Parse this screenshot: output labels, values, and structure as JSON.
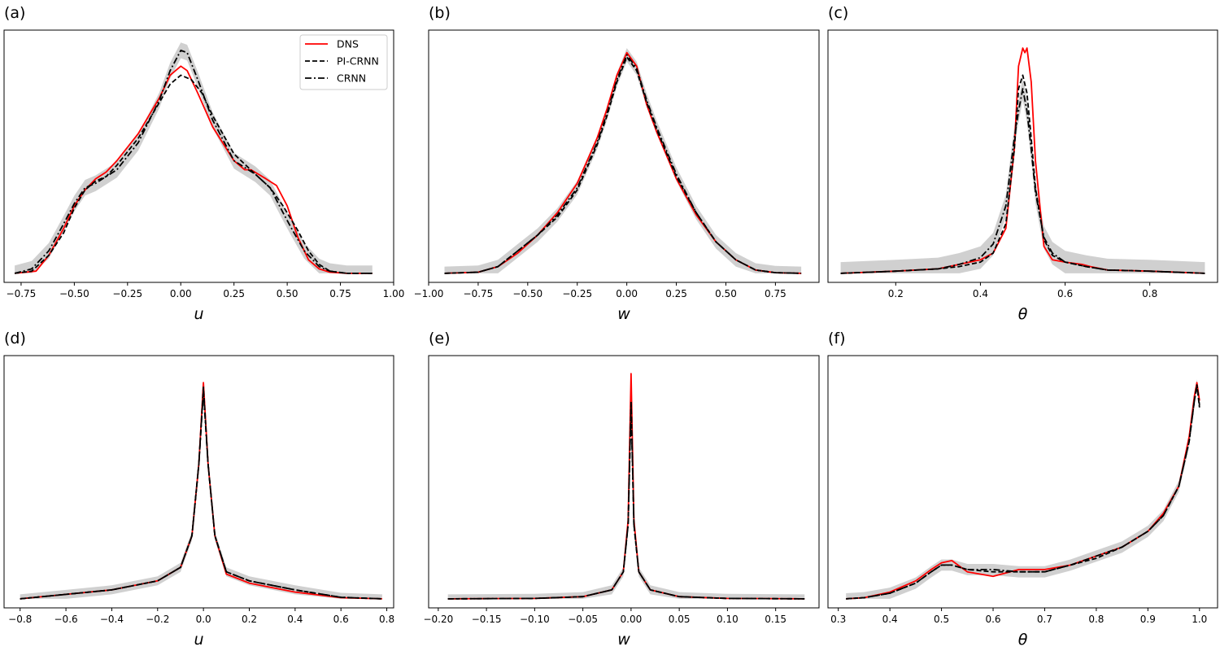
{
  "figure": {
    "legend": {
      "entries": [
        {
          "label": "DNS",
          "style": "solid",
          "color": "#ff0000"
        },
        {
          "label": "PI-CRNN",
          "style": "dashed",
          "color": "#000000"
        },
        {
          "label": "CRNN",
          "style": "dashdot",
          "color": "#000000"
        }
      ],
      "placement": "top-right of panel (a)"
    },
    "band_color": "#c8c8c8"
  },
  "chart_data": [
    {
      "panel": "(a)",
      "type": "line",
      "xlabel": "u",
      "xlim": [
        -0.83,
        1.0
      ],
      "ylim": [
        -0.04,
        1.08
      ],
      "xticks": [
        -0.75,
        -0.5,
        -0.25,
        0.0,
        0.25,
        0.5,
        0.75,
        1.0
      ],
      "xtick_labels": [
        "−0.75",
        "−0.50",
        "−0.25",
        "0.00",
        "0.25",
        "0.50",
        "0.75",
        "1.00"
      ],
      "series": [
        {
          "name": "DNS",
          "x": [
            -0.78,
            -0.68,
            -0.62,
            -0.55,
            -0.5,
            -0.45,
            -0.4,
            -0.35,
            -0.3,
            -0.2,
            -0.1,
            -0.05,
            0.0,
            0.03,
            0.08,
            0.15,
            0.25,
            0.3,
            0.33,
            0.4,
            0.45,
            0.5,
            0.55,
            0.6,
            0.65,
            0.7,
            0.78,
            0.9
          ],
          "y": [
            0.0,
            0.01,
            0.08,
            0.2,
            0.3,
            0.37,
            0.42,
            0.45,
            0.5,
            0.62,
            0.78,
            0.88,
            0.92,
            0.9,
            0.8,
            0.65,
            0.5,
            0.46,
            0.46,
            0.42,
            0.39,
            0.3,
            0.16,
            0.06,
            0.02,
            0.005,
            0.0,
            0.0
          ]
        },
        {
          "name": "PI-CRNN",
          "x": [
            -0.78,
            -0.7,
            -0.62,
            -0.55,
            -0.5,
            -0.45,
            -0.4,
            -0.35,
            -0.3,
            -0.2,
            -0.1,
            -0.05,
            0.0,
            0.05,
            0.1,
            0.15,
            0.25,
            0.35,
            0.42,
            0.48,
            0.55,
            0.6,
            0.65,
            0.7,
            0.78,
            0.9
          ],
          "y": [
            0.0,
            0.01,
            0.08,
            0.18,
            0.29,
            0.37,
            0.41,
            0.43,
            0.48,
            0.6,
            0.76,
            0.84,
            0.88,
            0.86,
            0.8,
            0.7,
            0.53,
            0.44,
            0.38,
            0.3,
            0.19,
            0.1,
            0.04,
            0.01,
            0.0,
            0.0
          ]
        },
        {
          "name": "CRNN",
          "x": [
            -0.78,
            -0.7,
            -0.62,
            -0.55,
            -0.5,
            -0.45,
            -0.4,
            -0.35,
            -0.3,
            -0.2,
            -0.1,
            -0.05,
            0.0,
            0.03,
            0.08,
            0.15,
            0.25,
            0.35,
            0.42,
            0.48,
            0.52,
            0.58,
            0.65,
            0.7,
            0.78,
            0.9
          ],
          "y": [
            0.0,
            0.02,
            0.1,
            0.22,
            0.31,
            0.38,
            0.4,
            0.43,
            0.46,
            0.58,
            0.77,
            0.9,
            0.99,
            0.98,
            0.86,
            0.68,
            0.5,
            0.44,
            0.38,
            0.27,
            0.2,
            0.1,
            0.03,
            0.01,
            0.0,
            0.0
          ]
        }
      ],
      "band": {
        "series": "CRNN",
        "width": 0.035
      }
    },
    {
      "panel": "(b)",
      "type": "line",
      "xlabel": "w",
      "xlim": [
        -1.0,
        0.97
      ],
      "ylim": [
        -0.04,
        1.08
      ],
      "xticks": [
        -1.0,
        -0.75,
        -0.5,
        -0.25,
        0.0,
        0.25,
        0.5,
        0.75
      ],
      "xtick_labels": [
        "−1.00",
        "−0.75",
        "−0.50",
        "−0.25",
        "0.00",
        "0.25",
        "0.50",
        "0.75"
      ],
      "series": [
        {
          "name": "DNS",
          "x": [
            -0.92,
            -0.75,
            -0.65,
            -0.55,
            -0.45,
            -0.35,
            -0.25,
            -0.15,
            -0.1,
            -0.05,
            0.0,
            0.05,
            0.1,
            0.15,
            0.25,
            0.35,
            0.45,
            0.55,
            0.65,
            0.75,
            0.88
          ],
          "y": [
            0.0,
            0.005,
            0.03,
            0.09,
            0.17,
            0.27,
            0.4,
            0.6,
            0.73,
            0.88,
            0.98,
            0.92,
            0.75,
            0.63,
            0.42,
            0.26,
            0.14,
            0.06,
            0.015,
            0.003,
            0.0
          ]
        },
        {
          "name": "PI-CRNN",
          "x": [
            -0.92,
            -0.75,
            -0.65,
            -0.55,
            -0.45,
            -0.35,
            -0.25,
            -0.15,
            -0.1,
            -0.05,
            0.0,
            0.05,
            0.1,
            0.15,
            0.25,
            0.35,
            0.45,
            0.55,
            0.65,
            0.75,
            0.88
          ],
          "y": [
            0.0,
            0.005,
            0.03,
            0.1,
            0.17,
            0.25,
            0.37,
            0.57,
            0.7,
            0.85,
            0.96,
            0.9,
            0.76,
            0.64,
            0.43,
            0.27,
            0.14,
            0.06,
            0.015,
            0.003,
            0.0
          ]
        },
        {
          "name": "CRNN",
          "x": [
            -0.92,
            -0.75,
            -0.65,
            -0.55,
            -0.45,
            -0.35,
            -0.25,
            -0.15,
            -0.1,
            -0.05,
            0.0,
            0.05,
            0.1,
            0.15,
            0.25,
            0.35,
            0.45,
            0.55,
            0.65,
            0.75,
            0.88
          ],
          "y": [
            0.0,
            0.005,
            0.03,
            0.1,
            0.17,
            0.26,
            0.38,
            0.58,
            0.71,
            0.86,
            0.97,
            0.91,
            0.77,
            0.65,
            0.44,
            0.27,
            0.14,
            0.06,
            0.015,
            0.003,
            0.0
          ]
        }
      ],
      "band": {
        "series": "CRNN",
        "width": 0.03
      }
    },
    {
      "panel": "(c)",
      "type": "line",
      "xlabel": "θ",
      "xlim": [
        0.04,
        0.96
      ],
      "ylim": [
        -0.04,
        1.08
      ],
      "xticks": [
        0.2,
        0.4,
        0.6,
        0.8
      ],
      "xtick_labels": [
        "0.2",
        "0.4",
        "0.6",
        "0.8"
      ],
      "series": [
        {
          "name": "DNS",
          "x": [
            0.07,
            0.2,
            0.3,
            0.35,
            0.4,
            0.43,
            0.46,
            0.48,
            0.49,
            0.5,
            0.505,
            0.51,
            0.52,
            0.53,
            0.55,
            0.57,
            0.6,
            0.64,
            0.66,
            0.7,
            0.8,
            0.93
          ],
          "y": [
            0.0,
            0.01,
            0.02,
            0.04,
            0.06,
            0.09,
            0.2,
            0.55,
            0.92,
            1.0,
            0.98,
            1.0,
            0.85,
            0.5,
            0.12,
            0.06,
            0.05,
            0.04,
            0.03,
            0.015,
            0.01,
            0.0
          ]
        },
        {
          "name": "PI-CRNN",
          "x": [
            0.07,
            0.2,
            0.3,
            0.35,
            0.4,
            0.43,
            0.46,
            0.48,
            0.49,
            0.5,
            0.51,
            0.52,
            0.53,
            0.55,
            0.57,
            0.6,
            0.65,
            0.7,
            0.8,
            0.93
          ],
          "y": [
            0.0,
            0.01,
            0.02,
            0.03,
            0.05,
            0.09,
            0.22,
            0.55,
            0.82,
            0.88,
            0.8,
            0.6,
            0.38,
            0.15,
            0.08,
            0.05,
            0.03,
            0.015,
            0.01,
            0.0
          ]
        },
        {
          "name": "CRNN",
          "x": [
            0.07,
            0.2,
            0.3,
            0.35,
            0.4,
            0.43,
            0.46,
            0.48,
            0.49,
            0.5,
            0.51,
            0.52,
            0.53,
            0.55,
            0.57,
            0.6,
            0.65,
            0.7,
            0.8,
            0.93
          ],
          "y": [
            0.0,
            0.01,
            0.02,
            0.04,
            0.07,
            0.13,
            0.3,
            0.6,
            0.72,
            0.82,
            0.72,
            0.55,
            0.36,
            0.16,
            0.09,
            0.05,
            0.03,
            0.015,
            0.01,
            0.0
          ]
        }
      ],
      "band": {
        "series": "CRNN",
        "width": 0.05
      }
    },
    {
      "panel": "(d)",
      "type": "line",
      "xlabel": "u",
      "xlim": [
        -0.87,
        0.83
      ],
      "ylim": [
        -0.04,
        1.08
      ],
      "xticks": [
        -0.8,
        -0.6,
        -0.4,
        -0.2,
        0.0,
        0.2,
        0.4,
        0.6,
        0.8
      ],
      "xtick_labels": [
        "−0.8",
        "−0.6",
        "−0.4",
        "−0.2",
        "0.0",
        "0.2",
        "0.4",
        "0.6",
        "0.8"
      ],
      "series": [
        {
          "name": "DNS",
          "x": [
            -0.8,
            -0.6,
            -0.4,
            -0.2,
            -0.1,
            -0.05,
            -0.02,
            0.0,
            0.02,
            0.05,
            0.1,
            0.2,
            0.4,
            0.6,
            0.78
          ],
          "y": [
            0.0,
            0.02,
            0.04,
            0.08,
            0.14,
            0.28,
            0.6,
            0.96,
            0.6,
            0.28,
            0.11,
            0.07,
            0.03,
            0.005,
            0.0
          ]
        },
        {
          "name": "PI-CRNN",
          "x": [
            -0.8,
            -0.6,
            -0.4,
            -0.2,
            -0.1,
            -0.05,
            -0.02,
            0.0,
            0.02,
            0.05,
            0.1,
            0.2,
            0.4,
            0.6,
            0.78
          ],
          "y": [
            0.0,
            0.02,
            0.04,
            0.08,
            0.14,
            0.28,
            0.6,
            0.94,
            0.6,
            0.28,
            0.12,
            0.08,
            0.04,
            0.007,
            0.0
          ]
        },
        {
          "name": "CRNN",
          "x": [
            -0.8,
            -0.6,
            -0.4,
            -0.2,
            -0.1,
            -0.05,
            -0.02,
            0.0,
            0.02,
            0.05,
            0.1,
            0.2,
            0.4,
            0.6,
            0.78
          ],
          "y": [
            0.0,
            0.02,
            0.04,
            0.08,
            0.14,
            0.28,
            0.6,
            0.92,
            0.6,
            0.28,
            0.12,
            0.08,
            0.04,
            0.007,
            0.0
          ]
        }
      ],
      "band": {
        "series": "CRNN",
        "width": 0.02
      }
    },
    {
      "panel": "(e)",
      "type": "line",
      "xlabel": "w",
      "xlim": [
        -0.21,
        0.195
      ],
      "ylim": [
        -0.04,
        1.08
      ],
      "xticks": [
        -0.2,
        -0.15,
        -0.1,
        -0.05,
        0.0,
        0.05,
        0.1,
        0.15
      ],
      "xtick_labels": [
        "−0.20",
        "−0.15",
        "−0.10",
        "−0.05",
        "0.00",
        "0.05",
        "0.10",
        "0.15"
      ],
      "series": [
        {
          "name": "DNS",
          "x": [
            -0.19,
            -0.1,
            -0.05,
            -0.02,
            -0.008,
            -0.003,
            0.0,
            0.003,
            0.008,
            0.02,
            0.05,
            0.1,
            0.18
          ],
          "y": [
            0.0,
            0.002,
            0.01,
            0.04,
            0.12,
            0.35,
            1.0,
            0.35,
            0.12,
            0.04,
            0.01,
            0.002,
            0.0
          ]
        },
        {
          "name": "PI-CRNN",
          "x": [
            -0.19,
            -0.1,
            -0.05,
            -0.02,
            -0.008,
            -0.003,
            0.0,
            0.003,
            0.008,
            0.02,
            0.05,
            0.1,
            0.18
          ],
          "y": [
            0.0,
            0.002,
            0.01,
            0.04,
            0.12,
            0.33,
            0.88,
            0.33,
            0.12,
            0.04,
            0.01,
            0.002,
            0.0
          ]
        },
        {
          "name": "CRNN",
          "x": [
            -0.19,
            -0.1,
            -0.05,
            -0.02,
            -0.008,
            -0.003,
            0.0,
            0.003,
            0.008,
            0.02,
            0.05,
            0.1,
            0.18
          ],
          "y": [
            0.0,
            0.002,
            0.01,
            0.04,
            0.12,
            0.33,
            0.86,
            0.33,
            0.12,
            0.04,
            0.01,
            0.002,
            0.0
          ]
        }
      ],
      "band": {
        "series": "CRNN",
        "width": 0.02
      }
    },
    {
      "panel": "(f)",
      "type": "line",
      "xlabel": "θ",
      "xlim": [
        0.28,
        1.035
      ],
      "ylim": [
        -0.04,
        1.08
      ],
      "xticks": [
        0.3,
        0.4,
        0.5,
        0.6,
        0.7,
        0.8,
        0.9,
        1.0
      ],
      "xtick_labels": [
        "0.3",
        "0.4",
        "0.5",
        "0.6",
        "0.7",
        "0.8",
        "0.9",
        "1.0"
      ],
      "series": [
        {
          "name": "DNS",
          "x": [
            0.315,
            0.35,
            0.4,
            0.45,
            0.48,
            0.5,
            0.52,
            0.55,
            0.6,
            0.65,
            0.7,
            0.75,
            0.8,
            0.85,
            0.9,
            0.93,
            0.96,
            0.98,
            0.99,
            0.995,
            1.0
          ],
          "y": [
            0.0,
            0.005,
            0.03,
            0.08,
            0.13,
            0.16,
            0.17,
            0.12,
            0.1,
            0.13,
            0.13,
            0.15,
            0.19,
            0.23,
            0.3,
            0.38,
            0.5,
            0.72,
            0.9,
            0.96,
            0.88
          ]
        },
        {
          "name": "PI-CRNN",
          "x": [
            0.315,
            0.35,
            0.4,
            0.45,
            0.48,
            0.5,
            0.52,
            0.55,
            0.6,
            0.65,
            0.7,
            0.75,
            0.8,
            0.85,
            0.9,
            0.93,
            0.96,
            0.98,
            0.99,
            0.995,
            1.0
          ],
          "y": [
            0.0,
            0.005,
            0.025,
            0.07,
            0.12,
            0.15,
            0.15,
            0.13,
            0.12,
            0.12,
            0.12,
            0.15,
            0.18,
            0.23,
            0.3,
            0.37,
            0.5,
            0.7,
            0.88,
            0.95,
            0.85
          ]
        },
        {
          "name": "CRNN",
          "x": [
            0.315,
            0.35,
            0.4,
            0.45,
            0.48,
            0.5,
            0.52,
            0.55,
            0.6,
            0.65,
            0.7,
            0.75,
            0.8,
            0.85,
            0.9,
            0.93,
            0.96,
            0.98,
            0.99,
            0.995,
            1.0
          ],
          "y": [
            0.0,
            0.005,
            0.025,
            0.07,
            0.12,
            0.15,
            0.15,
            0.13,
            0.13,
            0.12,
            0.12,
            0.15,
            0.19,
            0.23,
            0.3,
            0.37,
            0.5,
            0.7,
            0.88,
            0.95,
            0.86
          ]
        }
      ],
      "band": {
        "series": "CRNN",
        "width": 0.025
      }
    }
  ]
}
